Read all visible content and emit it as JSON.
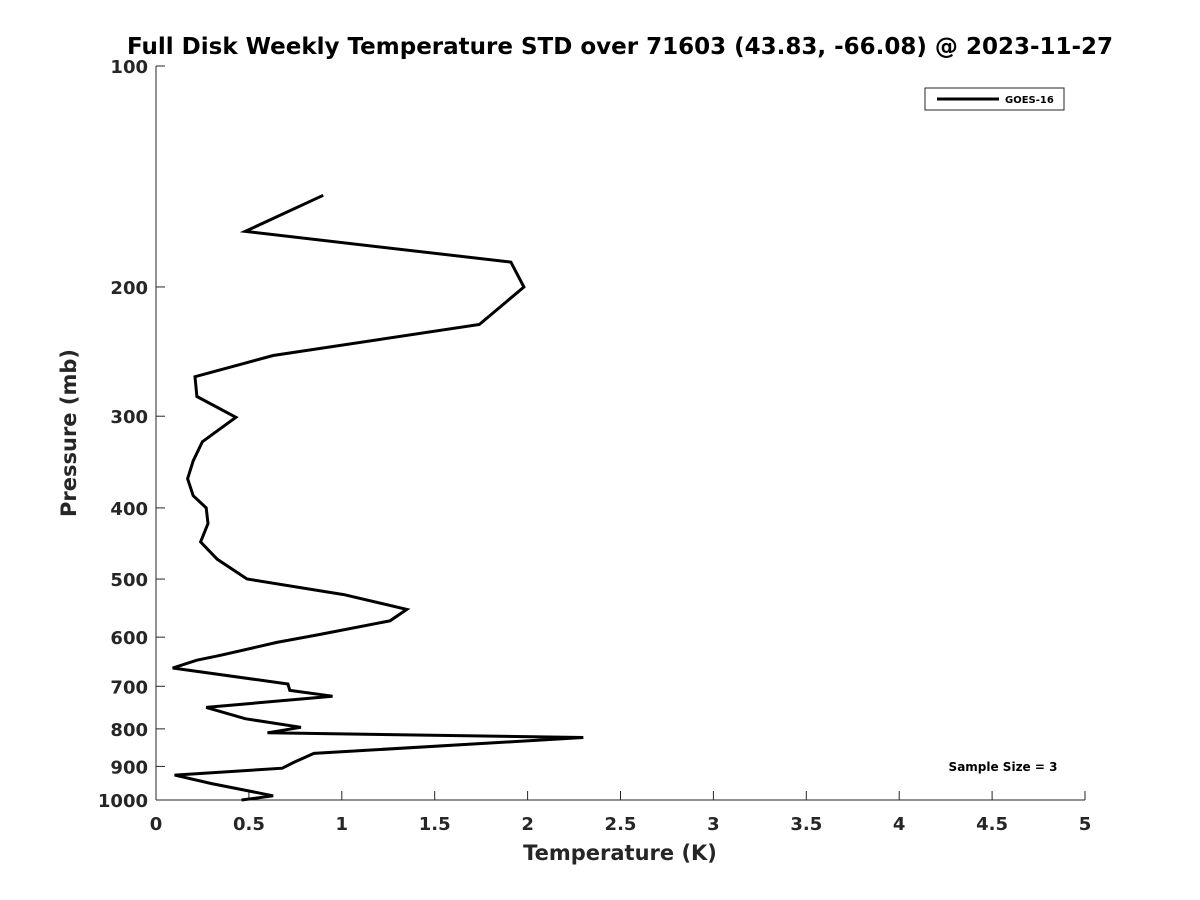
{
  "chart_data": {
    "type": "line",
    "title": "Full Disk Weekly Temperature STD over 71603 (43.83, -66.08) @ 2023-11-27",
    "xlabel": "Temperature (K)",
    "ylabel": "Pressure (mb)",
    "xlim": [
      0,
      5
    ],
    "ylim": [
      100,
      1000
    ],
    "y_scale": "log",
    "y_reversed": true,
    "grid": false,
    "legend_placement": "top-right",
    "x_ticks": [
      "0",
      "0.5",
      "1",
      "1.5",
      "2",
      "2.5",
      "3",
      "3.5",
      "4",
      "4.5",
      "5"
    ],
    "y_ticks": [
      "100",
      "200",
      "300",
      "400",
      "500",
      "600",
      "700",
      "800",
      "900",
      "1000"
    ],
    "series": [
      {
        "name": "GOES-16",
        "color": "#000000",
        "x": [
          0.9,
          0.48,
          1.91,
          1.98,
          1.74,
          0.63,
          0.21,
          0.22,
          0.43,
          0.25,
          0.2,
          0.17,
          0.2,
          0.27,
          0.28,
          0.24,
          0.33,
          0.49,
          1.01,
          1.35,
          1.26,
          0.88,
          0.65,
          0.35,
          0.22,
          0.09,
          0.71,
          0.72,
          0.95,
          0.27,
          0.48,
          0.78,
          0.6,
          2.3,
          0.85,
          0.74,
          0.68,
          0.1,
          0.3,
          0.63,
          0.46
        ],
        "y": [
          150,
          168,
          185,
          200,
          225,
          248,
          265,
          282,
          301,
          325,
          345,
          365,
          385,
          400,
          420,
          445,
          470,
          500,
          525,
          550,
          570,
          595,
          610,
          635,
          645,
          661,
          695,
          709,
          722,
          748,
          775,
          796,
          810,
          822,
          864,
          889,
          905,
          925,
          950,
          987,
          1000
        ]
      }
    ],
    "annotation": "Sample Size = 3"
  }
}
